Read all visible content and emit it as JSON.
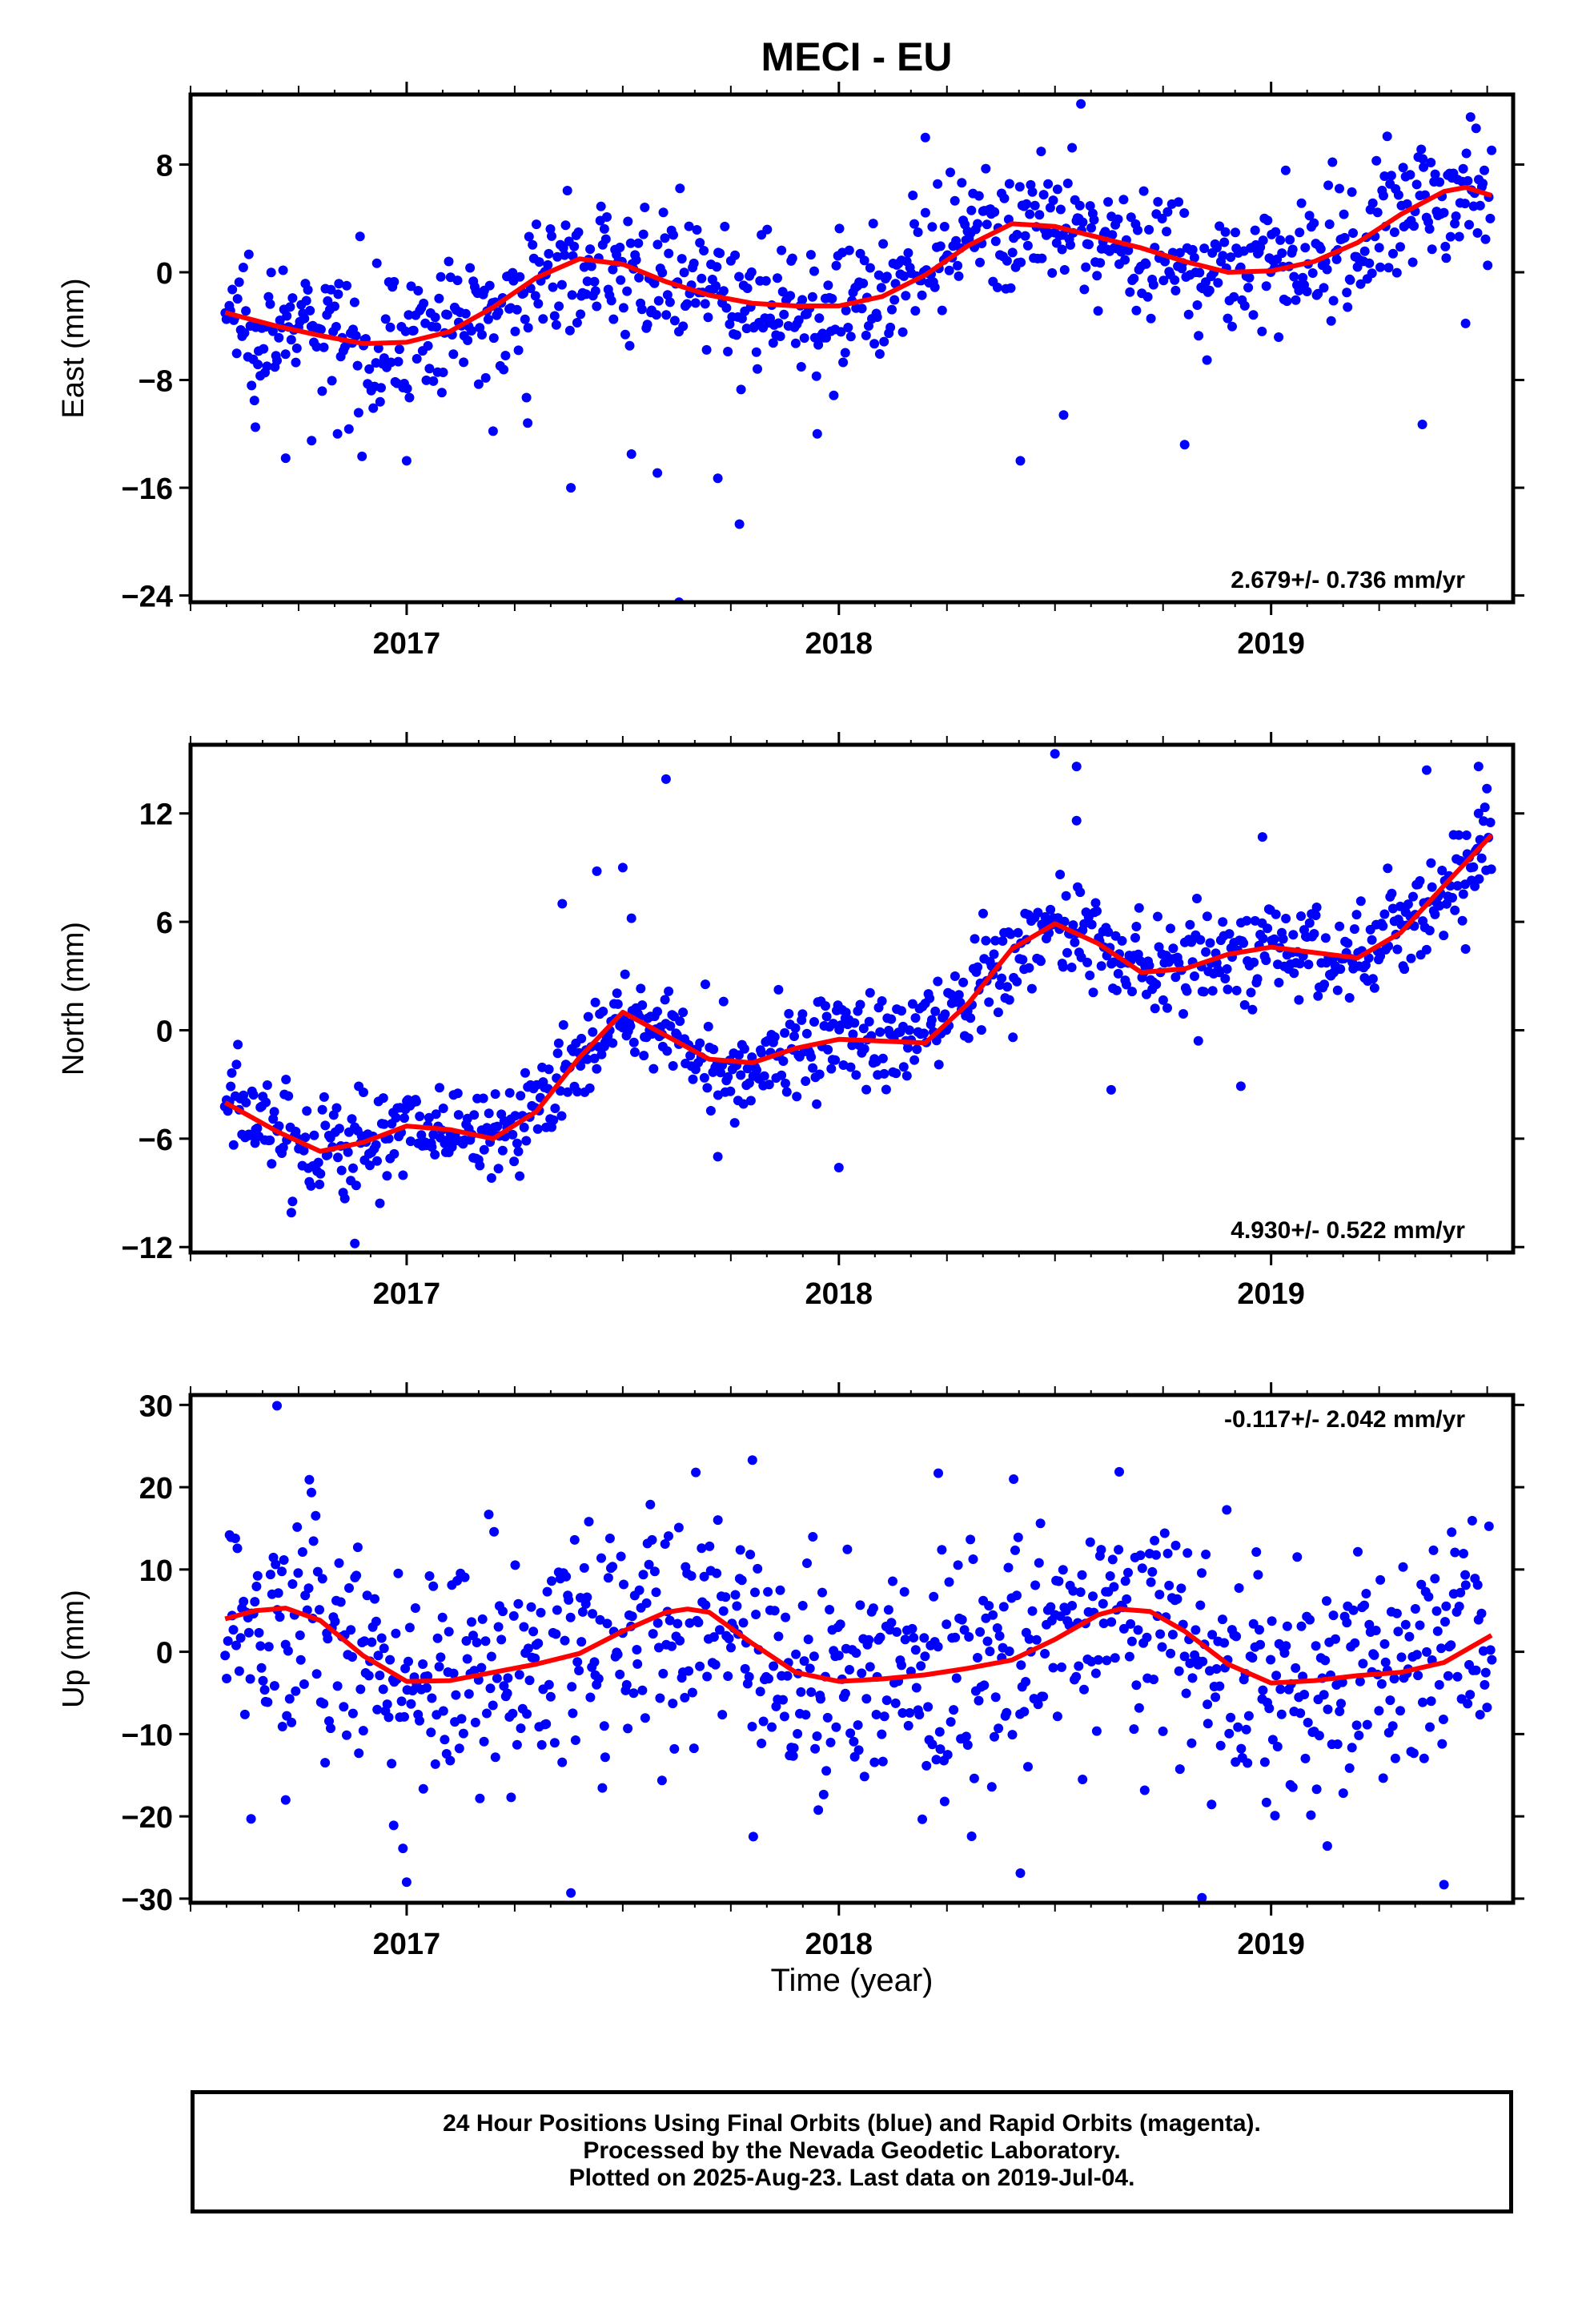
{
  "title": "MECI - EU",
  "xlabel": "Time (year)",
  "footer": {
    "line1": "24 Hour Positions Using Final Orbits (blue) and Rapid Orbits (magenta).",
    "line2": "Processed by the Nevada Geodetic Laboratory.",
    "line3": "Plotted on 2025-Aug-23. Last data on 2019-Jul-04."
  },
  "colors": {
    "points": "#0000ff",
    "fit": "#ff0000",
    "frame": "#000000"
  },
  "chart_data": [
    {
      "type": "scatter",
      "title": "MECI - EU",
      "ylabel": "East (mm)",
      "xlim": [
        2016.5,
        2019.56
      ],
      "ylim": [
        -24.5,
        13.2
      ],
      "yticks": [
        -24,
        -16,
        -8,
        0,
        8
      ],
      "xticks": [
        2017,
        2018,
        2019
      ],
      "rate_label": "2.679+/- 0.736 mm/yr",
      "rate_position": "bottom-right",
      "series": [
        {
          "kind": "points",
          "x_start": 2016.58,
          "x_end": 2019.51,
          "count": 900,
          "trend": [
            [
              2016.58,
              -3.0
            ],
            [
              2016.9,
              -5.3
            ],
            [
              2017.1,
              -4.4
            ],
            [
              2017.4,
              1.0
            ],
            [
              2017.8,
              -2.3
            ],
            [
              2018.0,
              -2.5
            ],
            [
              2018.15,
              -0.5
            ],
            [
              2018.4,
              3.6
            ],
            [
              2018.7,
              1.8
            ],
            [
              2018.9,
              0.0
            ],
            [
              2019.1,
              0.8
            ],
            [
              2019.3,
              4.3
            ],
            [
              2019.42,
              6.3
            ],
            [
              2019.5,
              5.8
            ]
          ],
          "scatter_sd": 2.4
        },
        {
          "kind": "fit",
          "points": [
            [
              2016.58,
              -3.0
            ],
            [
              2016.7,
              -4.0
            ],
            [
              2016.8,
              -4.7
            ],
            [
              2016.9,
              -5.3
            ],
            [
              2017.0,
              -5.2
            ],
            [
              2017.1,
              -4.4
            ],
            [
              2017.2,
              -2.6
            ],
            [
              2017.3,
              -0.4
            ],
            [
              2017.4,
              1.0
            ],
            [
              2017.5,
              0.6
            ],
            [
              2017.6,
              -0.7
            ],
            [
              2017.7,
              -1.7
            ],
            [
              2017.8,
              -2.3
            ],
            [
              2017.9,
              -2.5
            ],
            [
              2018.0,
              -2.5
            ],
            [
              2018.1,
              -1.8
            ],
            [
              2018.2,
              -0.2
            ],
            [
              2018.3,
              2.0
            ],
            [
              2018.4,
              3.6
            ],
            [
              2018.5,
              3.4
            ],
            [
              2018.6,
              2.6
            ],
            [
              2018.7,
              1.8
            ],
            [
              2018.8,
              0.8
            ],
            [
              2018.9,
              0.0
            ],
            [
              2019.0,
              0.1
            ],
            [
              2019.1,
              0.8
            ],
            [
              2019.2,
              2.2
            ],
            [
              2019.3,
              4.3
            ],
            [
              2019.4,
              6.0
            ],
            [
              2019.45,
              6.3
            ],
            [
              2019.51,
              5.7
            ]
          ]
        }
      ],
      "outliers": [
        [
          2016.65,
          -11.5
        ],
        [
          2016.72,
          -13.8
        ],
        [
          2016.78,
          -12.5
        ],
        [
          2016.84,
          -12.0
        ],
        [
          2017.0,
          -14.0
        ],
        [
          2017.2,
          -11.8
        ],
        [
          2017.28,
          -11.2
        ],
        [
          2017.38,
          -16.0
        ],
        [
          2017.52,
          -13.5
        ],
        [
          2017.58,
          -14.9
        ],
        [
          2017.63,
          -24.5
        ],
        [
          2017.72,
          -15.3
        ],
        [
          2017.77,
          -18.7
        ],
        [
          2017.95,
          -12.0
        ],
        [
          2018.2,
          10.0
        ],
        [
          2018.42,
          -14.0
        ],
        [
          2018.52,
          -10.6
        ],
        [
          2018.56,
          12.5
        ],
        [
          2018.8,
          -12.8
        ],
        [
          2019.35,
          -11.3
        ],
        [
          2019.45,
          -3.8
        ]
      ]
    },
    {
      "type": "scatter",
      "ylabel": "North (mm)",
      "xlim": [
        2016.5,
        2019.56
      ],
      "ylim": [
        -12.3,
        15.8
      ],
      "yticks": [
        -12,
        -6,
        0,
        6,
        12
      ],
      "xticks": [
        2017,
        2018,
        2019
      ],
      "rate_label": "4.930+/- 0.522 mm/yr",
      "rate_position": "bottom-right",
      "series": [
        {
          "kind": "points",
          "x_start": 2016.58,
          "x_end": 2019.51,
          "count": 900,
          "trend": [
            [
              2016.58,
              -4.0
            ],
            [
              2016.8,
              -6.7
            ],
            [
              2017.0,
              -5.3
            ],
            [
              2017.2,
              -6.0
            ],
            [
              2017.32,
              -4.0
            ],
            [
              2017.5,
              1.0
            ],
            [
              2017.75,
              -1.9
            ],
            [
              2017.98,
              -0.5
            ],
            [
              2018.15,
              -0.8
            ],
            [
              2018.5,
              5.9
            ],
            [
              2018.7,
              3.1
            ],
            [
              2018.95,
              4.5
            ],
            [
              2019.2,
              4.0
            ],
            [
              2019.35,
              6.5
            ],
            [
              2019.51,
              10.8
            ]
          ],
          "scatter_sd": 1.4
        },
        {
          "kind": "fit",
          "points": [
            [
              2016.58,
              -4.0
            ],
            [
              2016.7,
              -5.6
            ],
            [
              2016.8,
              -6.7
            ],
            [
              2016.9,
              -6.2
            ],
            [
              2017.0,
              -5.3
            ],
            [
              2017.1,
              -5.5
            ],
            [
              2017.2,
              -6.0
            ],
            [
              2017.3,
              -4.5
            ],
            [
              2017.4,
              -1.5
            ],
            [
              2017.5,
              1.0
            ],
            [
              2017.6,
              -0.3
            ],
            [
              2017.7,
              -1.6
            ],
            [
              2017.8,
              -1.8
            ],
            [
              2017.9,
              -1.0
            ],
            [
              2018.0,
              -0.5
            ],
            [
              2018.1,
              -0.6
            ],
            [
              2018.2,
              -0.7
            ],
            [
              2018.3,
              1.5
            ],
            [
              2018.4,
              4.5
            ],
            [
              2018.5,
              5.9
            ],
            [
              2018.6,
              4.8
            ],
            [
              2018.7,
              3.2
            ],
            [
              2018.8,
              3.4
            ],
            [
              2018.9,
              4.2
            ],
            [
              2019.0,
              4.6
            ],
            [
              2019.1,
              4.3
            ],
            [
              2019.2,
              4.0
            ],
            [
              2019.3,
              5.4
            ],
            [
              2019.4,
              8.0
            ],
            [
              2019.51,
              10.8
            ]
          ]
        }
      ],
      "outliers": [
        [
          2016.88,
          -11.8
        ],
        [
          2017.36,
          7.0
        ],
        [
          2017.44,
          8.8
        ],
        [
          2017.5,
          9.0
        ],
        [
          2017.52,
          6.2
        ],
        [
          2017.6,
          13.9
        ],
        [
          2017.72,
          -7.0
        ],
        [
          2018.0,
          -7.6
        ],
        [
          2018.5,
          15.3
        ],
        [
          2018.55,
          14.6
        ],
        [
          2018.55,
          11.6
        ],
        [
          2018.63,
          -3.3
        ],
        [
          2018.93,
          -3.1
        ],
        [
          2018.98,
          10.7
        ],
        [
          2019.36,
          14.4
        ],
        [
          2019.48,
          14.6
        ],
        [
          2019.48,
          12.0
        ],
        [
          2019.45,
          4.5
        ]
      ]
    },
    {
      "type": "scatter",
      "ylabel": "Up (mm)",
      "xlim": [
        2016.5,
        2019.56
      ],
      "ylim": [
        -30.5,
        31.2
      ],
      "yticks": [
        -30,
        -20,
        -10,
        0,
        10,
        20,
        30
      ],
      "xticks": [
        2017,
        2018,
        2019
      ],
      "rate_label": "-0.117+/- 2.042 mm/yr",
      "rate_position": "top-right",
      "series": [
        {
          "kind": "points",
          "x_start": 2016.58,
          "x_end": 2019.51,
          "count": 900,
          "trend": [
            [
              2016.58,
              4.0
            ],
            [
              2016.72,
              5.3
            ],
            [
              2017.0,
              -3.6
            ],
            [
              2017.3,
              -1.5
            ],
            [
              2017.65,
              5.2
            ],
            [
              2018.0,
              -3.6
            ],
            [
              2018.35,
              -1.8
            ],
            [
              2018.65,
              5.2
            ],
            [
              2019.0,
              -3.8
            ],
            [
              2019.3,
              -2.5
            ],
            [
              2019.51,
              2.0
            ]
          ],
          "scatter_sd": 7.2
        },
        {
          "kind": "fit",
          "points": [
            [
              2016.58,
              4.0
            ],
            [
              2016.65,
              5.0
            ],
            [
              2016.72,
              5.3
            ],
            [
              2016.8,
              3.8
            ],
            [
              2016.9,
              -0.5
            ],
            [
              2017.0,
              -3.6
            ],
            [
              2017.1,
              -3.5
            ],
            [
              2017.2,
              -2.5
            ],
            [
              2017.3,
              -1.5
            ],
            [
              2017.4,
              -0.2
            ],
            [
              2017.5,
              2.5
            ],
            [
              2017.6,
              4.8
            ],
            [
              2017.65,
              5.2
            ],
            [
              2017.7,
              4.8
            ],
            [
              2017.8,
              1.0
            ],
            [
              2017.9,
              -2.5
            ],
            [
              2018.0,
              -3.6
            ],
            [
              2018.1,
              -3.3
            ],
            [
              2018.2,
              -2.8
            ],
            [
              2018.3,
              -2.0
            ],
            [
              2018.4,
              -1.0
            ],
            [
              2018.5,
              1.5
            ],
            [
              2018.6,
              4.5
            ],
            [
              2018.65,
              5.2
            ],
            [
              2018.72,
              4.9
            ],
            [
              2018.8,
              2.5
            ],
            [
              2018.9,
              -1.5
            ],
            [
              2019.0,
              -3.8
            ],
            [
              2019.1,
              -3.5
            ],
            [
              2019.2,
              -2.9
            ],
            [
              2019.3,
              -2.5
            ],
            [
              2019.4,
              -1.3
            ],
            [
              2019.51,
              2.0
            ]
          ]
        }
      ],
      "outliers": [
        [
          2016.7,
          29.9
        ],
        [
          2017.0,
          -28.0
        ],
        [
          2017.38,
          -29.3
        ],
        [
          2017.8,
          23.3
        ],
        [
          2018.23,
          21.7
        ],
        [
          2018.42,
          -26.9
        ],
        [
          2018.84,
          -29.9
        ],
        [
          2019.13,
          -23.6
        ],
        [
          2019.4,
          -28.3
        ],
        [
          2016.64,
          -20.3
        ],
        [
          2016.72,
          -18.0
        ],
        [
          2016.97,
          -21.1
        ]
      ]
    }
  ]
}
